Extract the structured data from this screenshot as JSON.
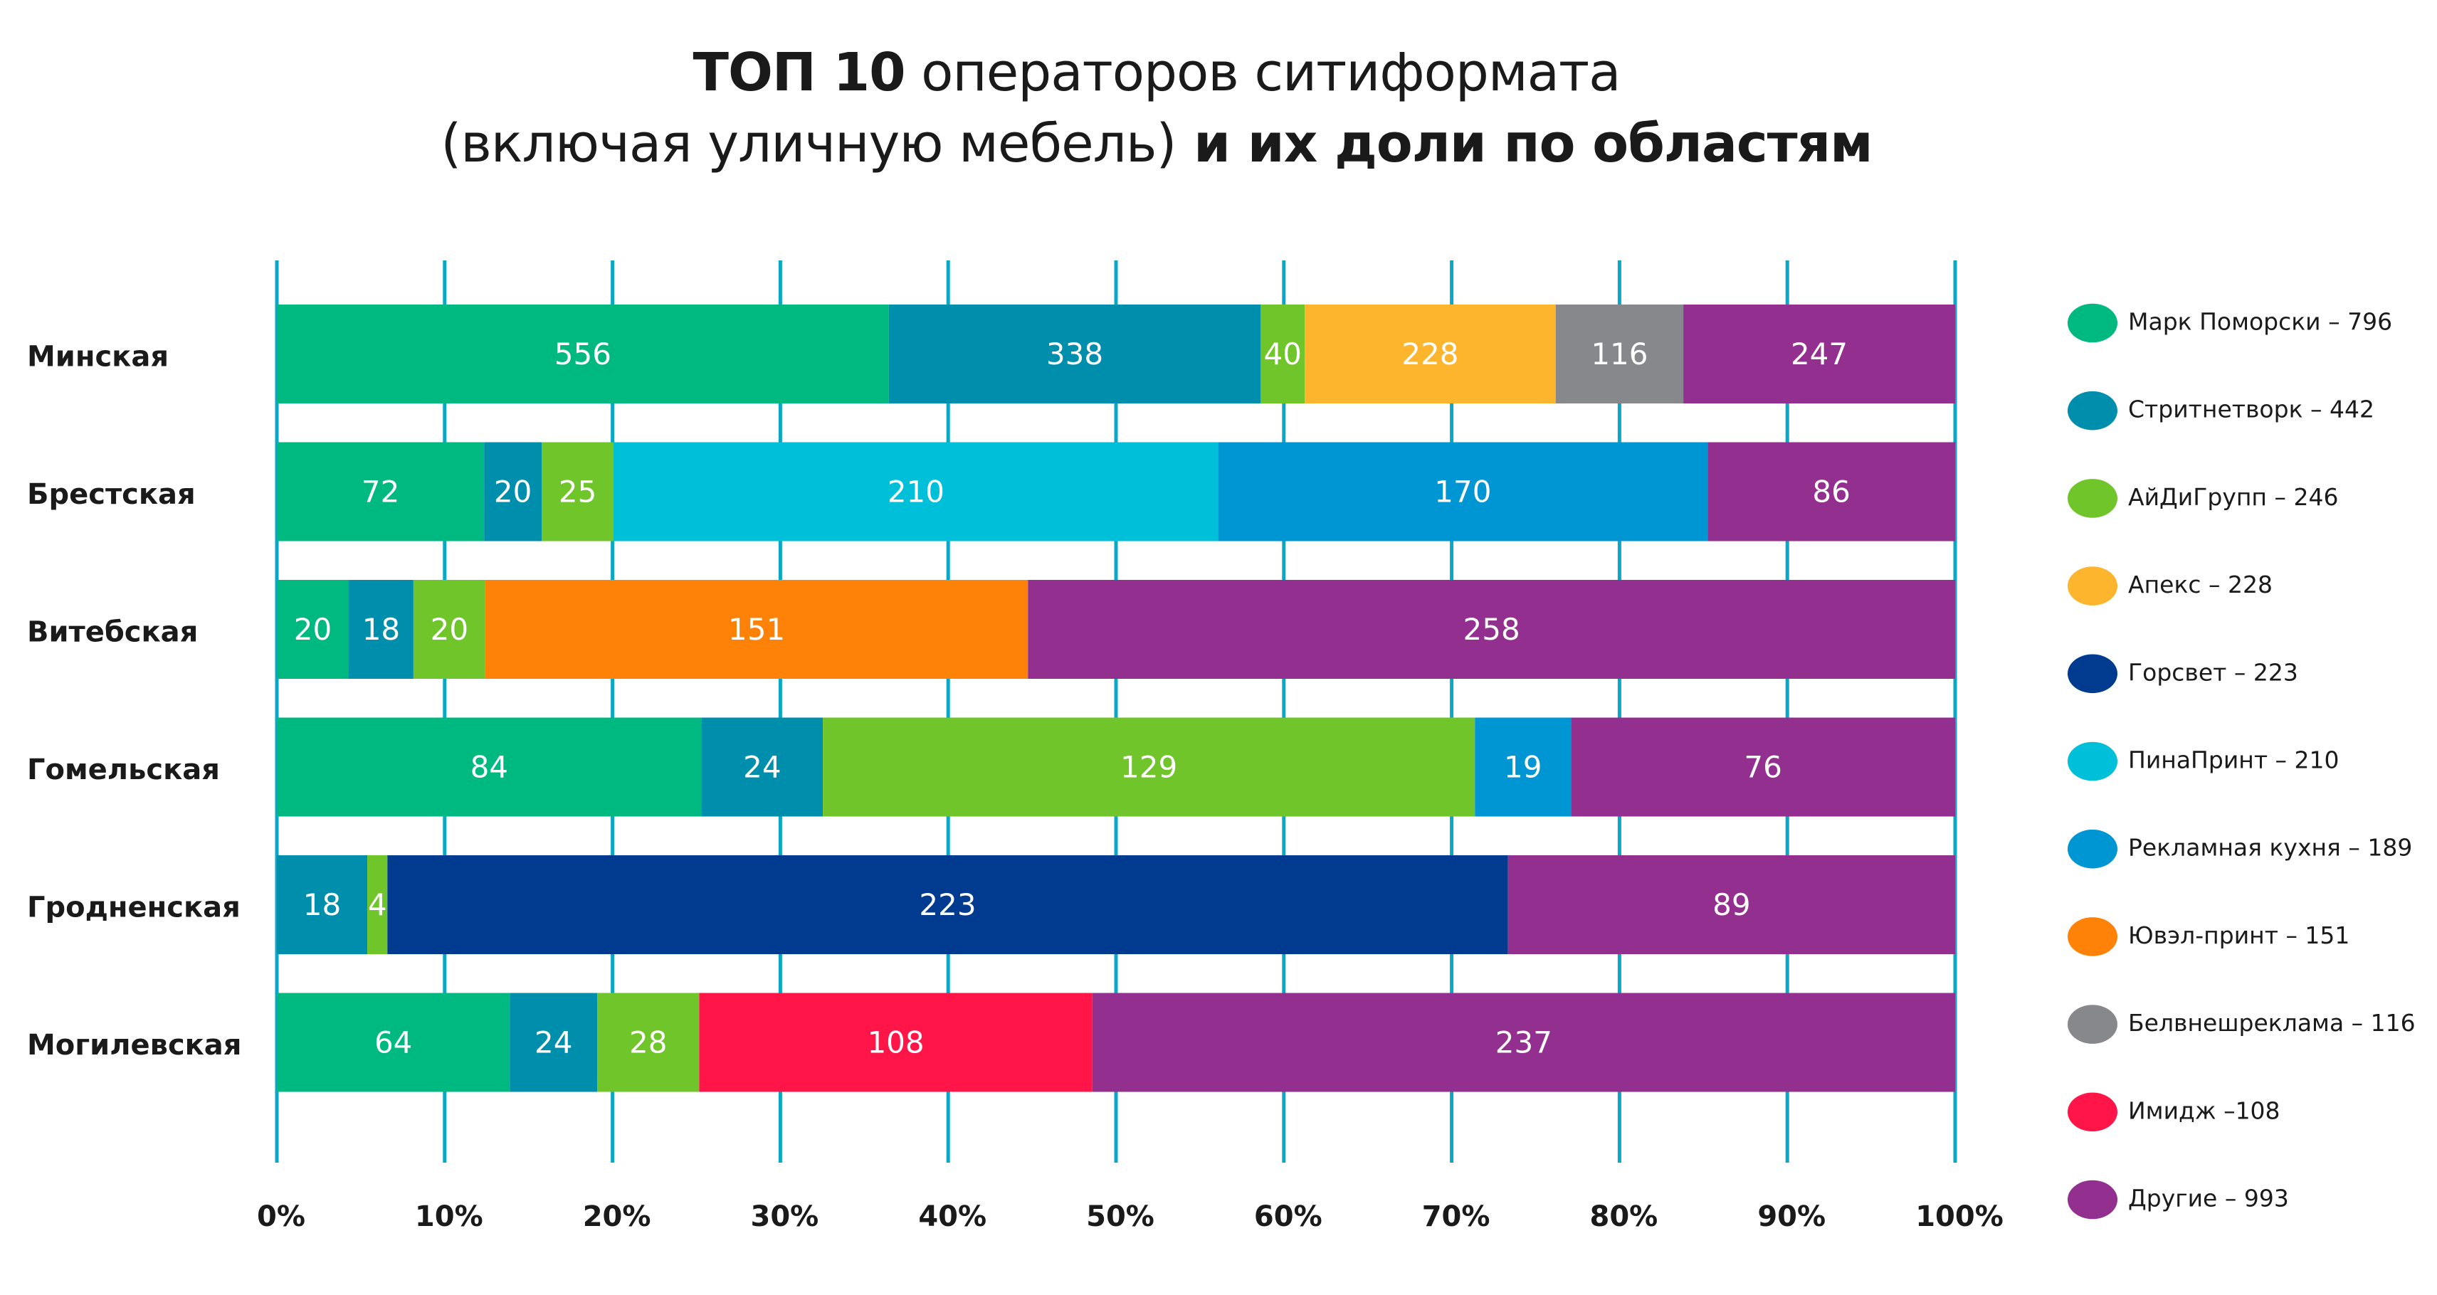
{
  "title": {
    "line1_bold": "ТОП 10",
    "line1_regular": " операторов ситиформата",
    "line2_regular": "(включая уличную мебель)",
    "line2_bold": " и их доли по областям"
  },
  "chart_data": {
    "type": "bar",
    "orientation": "horizontal",
    "stacked": true,
    "normalized": "percent",
    "title": "ТОП 10 операторов ситиформата (включая уличную мебель) и их доли по областям",
    "xlabel": "",
    "ylabel": "",
    "xlim": [
      0,
      100
    ],
    "x_ticks": [
      "0%",
      "10%",
      "20%",
      "30%",
      "40%",
      "50%",
      "60%",
      "70%",
      "80%",
      "90%",
      "100%"
    ],
    "grid": "vertical",
    "legend_position": "right",
    "categories": [
      "Минская",
      "Брестская",
      "Витебская",
      "Гомельская",
      "Гродненская",
      "Могилевская"
    ],
    "series": [
      {
        "name": "Марк Поморски",
        "total": 796,
        "color": "#00b981",
        "values": [
          556,
          72,
          20,
          84,
          null,
          64
        ]
      },
      {
        "name": "Стритнетворк",
        "total": 442,
        "color": "#008ead",
        "values": [
          338,
          20,
          18,
          24,
          18,
          24
        ]
      },
      {
        "name": "АйДиГрупп",
        "total": 246,
        "color": "#6fc52a",
        "values": [
          40,
          25,
          20,
          129,
          4,
          28
        ]
      },
      {
        "name": "Апекс",
        "total": 228,
        "color": "#fdb52e",
        "values": [
          228,
          null,
          null,
          null,
          null,
          null
        ]
      },
      {
        "name": "Горсвет",
        "total": 223,
        "color": "#003b90",
        "values": [
          null,
          null,
          null,
          null,
          223,
          null
        ]
      },
      {
        "name": "ПинаПринт",
        "total": 210,
        "color": "#00bfd8",
        "values": [
          null,
          210,
          null,
          null,
          null,
          null
        ]
      },
      {
        "name": "Рекламная кухня",
        "total": 189,
        "color": "#0095d3",
        "values": [
          null,
          170,
          null,
          19,
          null,
          null
        ]
      },
      {
        "name": "Ювэл-принт",
        "total": 151,
        "color": "#ff8208",
        "values": [
          null,
          null,
          151,
          null,
          null,
          null
        ]
      },
      {
        "name": "Белвнешреклама",
        "total": 116,
        "color": "#87888c",
        "values": [
          116,
          null,
          null,
          null,
          null,
          null
        ]
      },
      {
        "name": "Имидж",
        "total": 108,
        "color": "#ff1548",
        "values": [
          null,
          null,
          null,
          null,
          null,
          108
        ]
      },
      {
        "name": "Другие",
        "total": 993,
        "color": "#932f8f",
        "values": [
          247,
          86,
          258,
          76,
          89,
          237
        ]
      }
    ],
    "legend": [
      {
        "label": "Марк Поморски – 796"
      },
      {
        "label": "Стритнетворк – 442"
      },
      {
        "label": "АйДиГрупп – 246"
      },
      {
        "label": "Апекс – 228"
      },
      {
        "label": "Горсвет – 223"
      },
      {
        "label": "ПинаПринт – 210"
      },
      {
        "label": "Рекламная кухня – 189"
      },
      {
        "label": "Ювэл-принт – 151"
      },
      {
        "label": "Белвнешреклама – 116"
      },
      {
        "label": "Имидж –108"
      },
      {
        "label": "Другие – 993"
      }
    ],
    "gridline_color": "#0ba7c6"
  }
}
